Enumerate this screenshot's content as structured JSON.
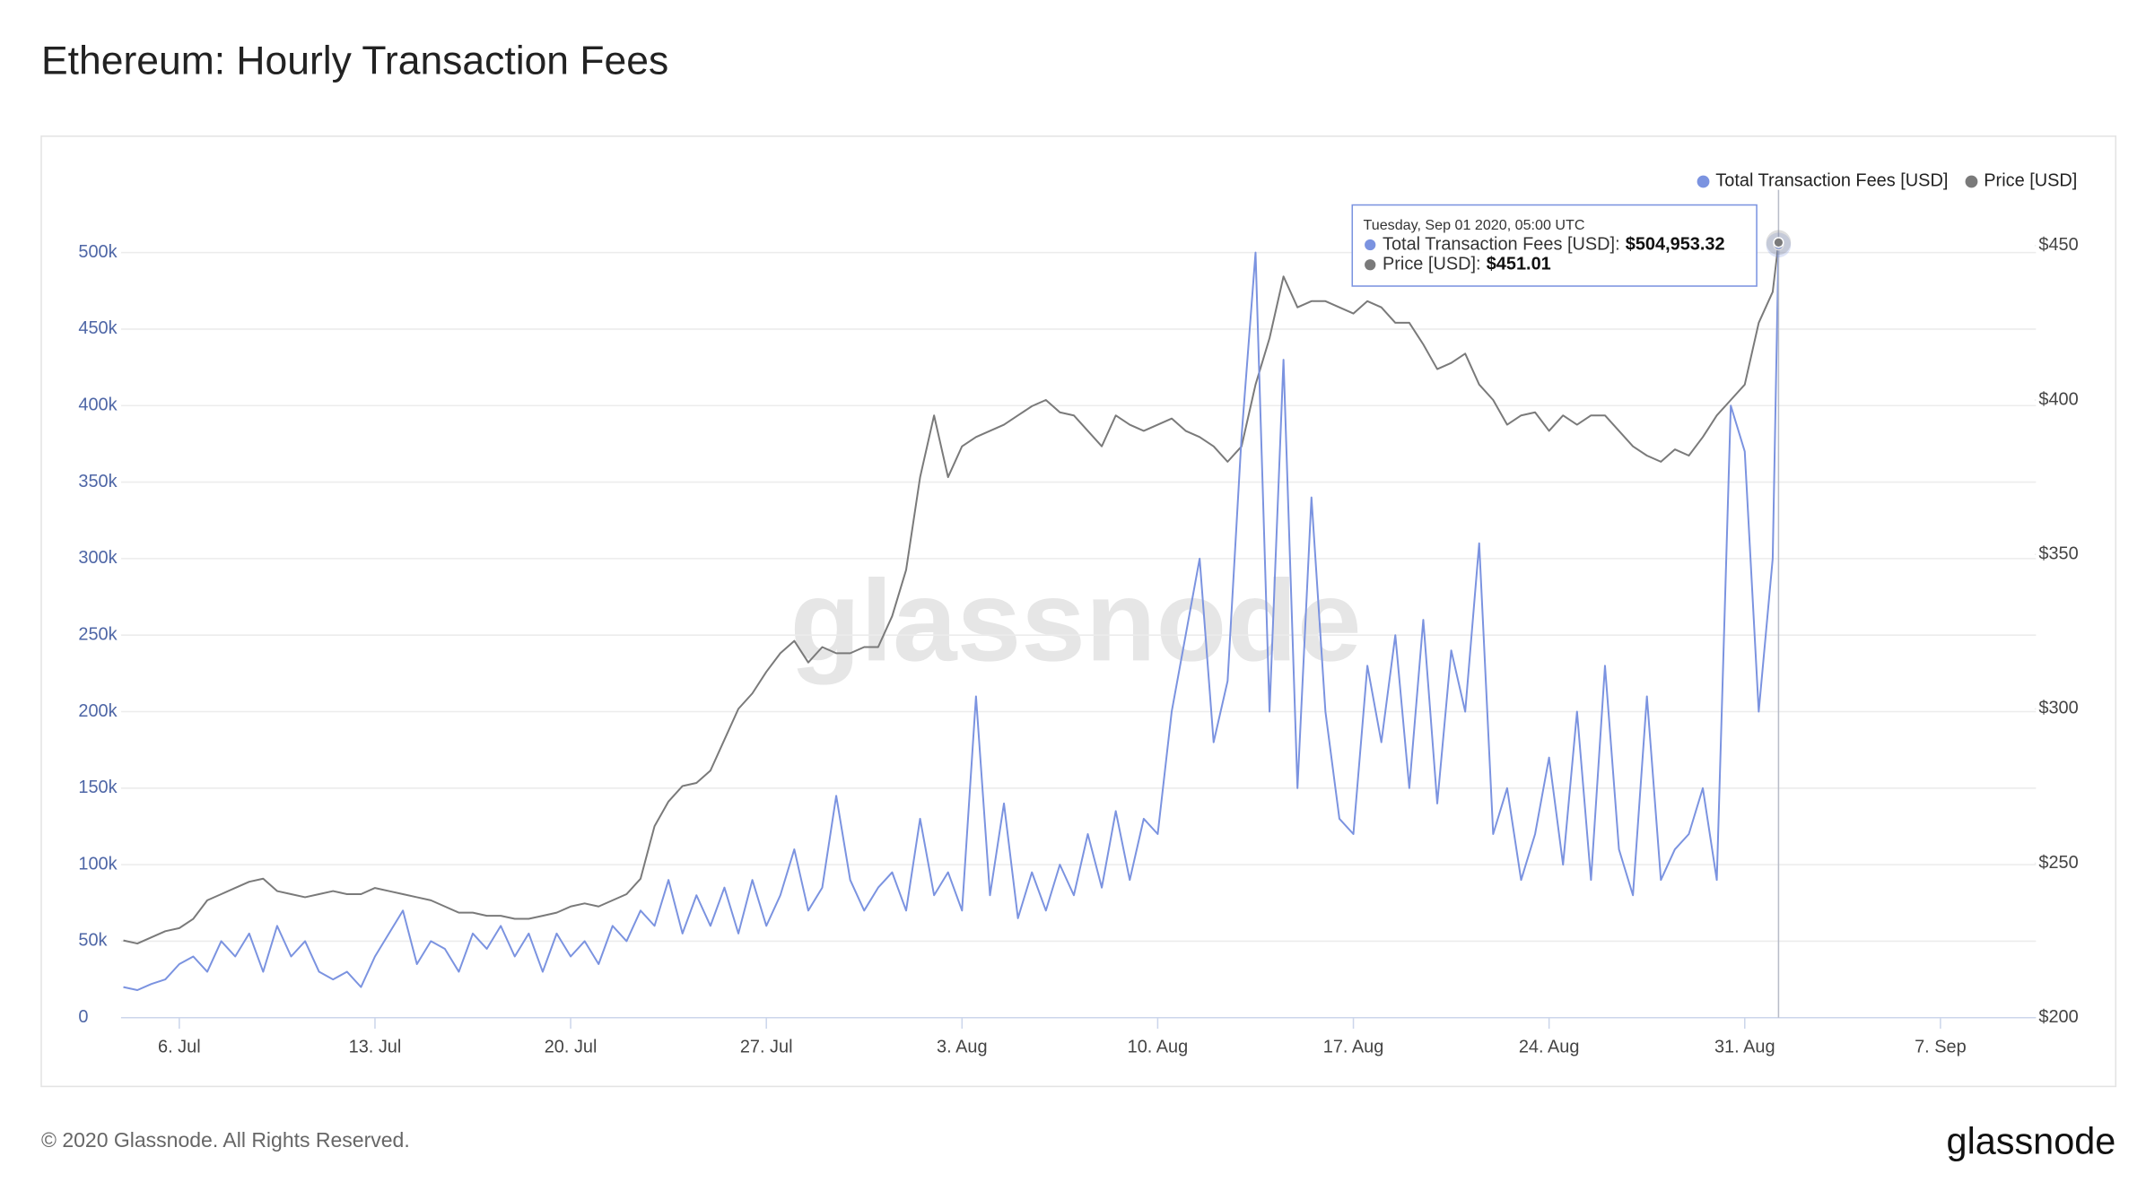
{
  "chart_data": {
    "type": "line",
    "title": "Ethereum: Hourly Transaction Fees",
    "watermark": "glassnode",
    "footer": "© 2020 Glassnode. All Rights Reserved.",
    "logo": "glassnode",
    "legend": "top-right",
    "grid": true,
    "x": [
      "2020-07-04T00:00",
      "2020-07-04T12:00",
      "2020-07-05T00:00",
      "2020-07-05T12:00",
      "2020-07-06T00:00",
      "2020-07-06T12:00",
      "2020-07-07T00:00",
      "2020-07-07T12:00",
      "2020-07-08T00:00",
      "2020-07-08T12:00",
      "2020-07-09T00:00",
      "2020-07-09T12:00",
      "2020-07-10T00:00",
      "2020-07-10T12:00",
      "2020-07-11T00:00",
      "2020-07-11T12:00",
      "2020-07-12T00:00",
      "2020-07-12T12:00",
      "2020-07-13T00:00",
      "2020-07-13T12:00",
      "2020-07-14T00:00",
      "2020-07-14T12:00",
      "2020-07-15T00:00",
      "2020-07-15T12:00",
      "2020-07-16T00:00",
      "2020-07-16T12:00",
      "2020-07-17T00:00",
      "2020-07-17T12:00",
      "2020-07-18T00:00",
      "2020-07-18T12:00",
      "2020-07-19T00:00",
      "2020-07-19T12:00",
      "2020-07-20T00:00",
      "2020-07-20T12:00",
      "2020-07-21T00:00",
      "2020-07-21T12:00",
      "2020-07-22T00:00",
      "2020-07-22T12:00",
      "2020-07-23T00:00",
      "2020-07-23T12:00",
      "2020-07-24T00:00",
      "2020-07-24T12:00",
      "2020-07-25T00:00",
      "2020-07-25T12:00",
      "2020-07-26T00:00",
      "2020-07-26T12:00",
      "2020-07-27T00:00",
      "2020-07-27T12:00",
      "2020-07-28T00:00",
      "2020-07-28T12:00",
      "2020-07-29T00:00",
      "2020-07-29T12:00",
      "2020-07-30T00:00",
      "2020-07-30T12:00",
      "2020-07-31T00:00",
      "2020-07-31T12:00",
      "2020-08-01T00:00",
      "2020-08-01T12:00",
      "2020-08-02T00:00",
      "2020-08-02T12:00",
      "2020-08-03T00:00",
      "2020-08-03T12:00",
      "2020-08-04T00:00",
      "2020-08-04T12:00",
      "2020-08-05T00:00",
      "2020-08-05T12:00",
      "2020-08-06T00:00",
      "2020-08-06T12:00",
      "2020-08-07T00:00",
      "2020-08-07T12:00",
      "2020-08-08T00:00",
      "2020-08-08T12:00",
      "2020-08-09T00:00",
      "2020-08-09T12:00",
      "2020-08-10T00:00",
      "2020-08-10T12:00",
      "2020-08-11T00:00",
      "2020-08-11T12:00",
      "2020-08-12T00:00",
      "2020-08-12T12:00",
      "2020-08-13T00:00",
      "2020-08-13T12:00",
      "2020-08-14T00:00",
      "2020-08-14T12:00",
      "2020-08-15T00:00",
      "2020-08-15T12:00",
      "2020-08-16T00:00",
      "2020-08-16T12:00",
      "2020-08-17T00:00",
      "2020-08-17T12:00",
      "2020-08-18T00:00",
      "2020-08-18T12:00",
      "2020-08-19T00:00",
      "2020-08-19T12:00",
      "2020-08-20T00:00",
      "2020-08-20T12:00",
      "2020-08-21T00:00",
      "2020-08-21T12:00",
      "2020-08-22T00:00",
      "2020-08-22T12:00",
      "2020-08-23T00:00",
      "2020-08-23T12:00",
      "2020-08-24T00:00",
      "2020-08-24T12:00",
      "2020-08-25T00:00",
      "2020-08-25T12:00",
      "2020-08-26T00:00",
      "2020-08-26T12:00",
      "2020-08-27T00:00",
      "2020-08-27T12:00",
      "2020-08-28T00:00",
      "2020-08-28T12:00",
      "2020-08-29T00:00",
      "2020-08-29T12:00",
      "2020-08-30T00:00",
      "2020-08-30T12:00",
      "2020-08-31T00:00",
      "2020-08-31T12:00",
      "2020-09-01T00:00",
      "2020-09-01T05:00"
    ],
    "series": [
      {
        "name": "Total Transaction Fees [USD]",
        "color": "#7b93e0",
        "values": [
          20000,
          18000,
          22000,
          25000,
          35000,
          40000,
          30000,
          50000,
          40000,
          55000,
          30000,
          60000,
          40000,
          50000,
          30000,
          25000,
          30000,
          20000,
          40000,
          55000,
          70000,
          35000,
          50000,
          45000,
          30000,
          55000,
          45000,
          60000,
          40000,
          55000,
          30000,
          55000,
          40000,
          50000,
          35000,
          60000,
          50000,
          70000,
          60000,
          90000,
          55000,
          80000,
          60000,
          85000,
          55000,
          90000,
          60000,
          80000,
          110000,
          70000,
          85000,
          145000,
          90000,
          70000,
          85000,
          95000,
          70000,
          130000,
          80000,
          95000,
          70000,
          210000,
          80000,
          140000,
          65000,
          95000,
          70000,
          100000,
          80000,
          120000,
          85000,
          135000,
          90000,
          130000,
          120000,
          200000,
          250000,
          300000,
          180000,
          220000,
          380000,
          500000,
          200000,
          430000,
          150000,
          340000,
          200000,
          130000,
          120000,
          230000,
          180000,
          250000,
          150000,
          260000,
          140000,
          240000,
          200000,
          310000,
          120000,
          150000,
          90000,
          120000,
          170000,
          100000,
          200000,
          90000,
          230000,
          110000,
          80000,
          210000,
          90000,
          110000,
          120000,
          150000,
          90000,
          400000,
          370000,
          200000,
          300000,
          504953.32
        ]
      },
      {
        "name": "Price [USD]",
        "color": "#7a7a7a",
        "axis": "y2",
        "values": [
          225,
          224,
          226,
          228,
          229,
          232,
          238,
          240,
          242,
          244,
          245,
          241,
          240,
          239,
          240,
          241,
          240,
          240,
          242,
          241,
          240,
          239,
          238,
          236,
          234,
          234,
          233,
          233,
          232,
          232,
          233,
          234,
          236,
          237,
          236,
          238,
          240,
          245,
          262,
          270,
          275,
          276,
          280,
          290,
          300,
          305,
          312,
          318,
          322,
          315,
          320,
          318,
          318,
          320,
          320,
          330,
          345,
          375,
          395,
          375,
          385,
          388,
          390,
          392,
          395,
          398,
          400,
          396,
          395,
          390,
          385,
          395,
          392,
          390,
          392,
          394,
          390,
          388,
          385,
          380,
          385,
          405,
          420,
          440,
          430,
          432,
          432,
          430,
          428,
          432,
          430,
          425,
          425,
          418,
          410,
          412,
          415,
          405,
          400,
          392,
          395,
          396,
          390,
          395,
          392,
          395,
          395,
          390,
          385,
          382,
          380,
          384,
          382,
          388,
          395,
          400,
          405,
          425,
          435,
          451.01
        ]
      }
    ],
    "xlim": [
      "2020-07-03T22:00",
      "2020-09-10T10:00"
    ],
    "xticks": [
      {
        "value": "2020-07-06T00:00",
        "label": "6. Jul"
      },
      {
        "value": "2020-07-13T00:00",
        "label": "13. Jul"
      },
      {
        "value": "2020-07-20T00:00",
        "label": "20. Jul"
      },
      {
        "value": "2020-07-27T00:00",
        "label": "27. Jul"
      },
      {
        "value": "2020-08-03T00:00",
        "label": "3. Aug"
      },
      {
        "value": "2020-08-10T00:00",
        "label": "10. Aug"
      },
      {
        "value": "2020-08-17T00:00",
        "label": "17. Aug"
      },
      {
        "value": "2020-08-24T00:00",
        "label": "24. Aug"
      },
      {
        "value": "2020-08-31T00:00",
        "label": "31. Aug"
      },
      {
        "value": "2020-09-07T00:00",
        "label": "7. Sep"
      }
    ],
    "ylim": [
      0,
      550000
    ],
    "yticks": [
      0,
      {
        "value": 50000,
        "label": "50k"
      },
      {
        "value": 100000,
        "label": "100k"
      },
      {
        "value": 150000,
        "label": "150k"
      },
      {
        "value": 200000,
        "label": "200k"
      },
      {
        "value": 250000,
        "label": "250k"
      },
      {
        "value": 300000,
        "label": "300k"
      },
      {
        "value": 350000,
        "label": "350k"
      },
      {
        "value": 400000,
        "label": "400k"
      },
      {
        "value": 450000,
        "label": "450k"
      },
      {
        "value": 500000,
        "label": "500k"
      }
    ],
    "y2lim": [
      200,
      472.5
    ],
    "y2ticks": [
      {
        "value": 200,
        "label": "$200"
      },
      {
        "value": 250,
        "label": "$250"
      },
      {
        "value": 300,
        "label": "$300"
      },
      {
        "value": 350,
        "label": "$350"
      },
      {
        "value": 400,
        "label": "$400"
      },
      {
        "value": 450,
        "label": "$450"
      }
    ],
    "tooltip": {
      "title": "Tuesday, Sep 01 2020, 05:00 UTC",
      "rows": [
        {
          "label": "Total Transaction Fees [USD]:",
          "value": "$504,953.32"
        },
        {
          "label": "Price [USD]:",
          "value": "$451.01"
        }
      ]
    }
  }
}
